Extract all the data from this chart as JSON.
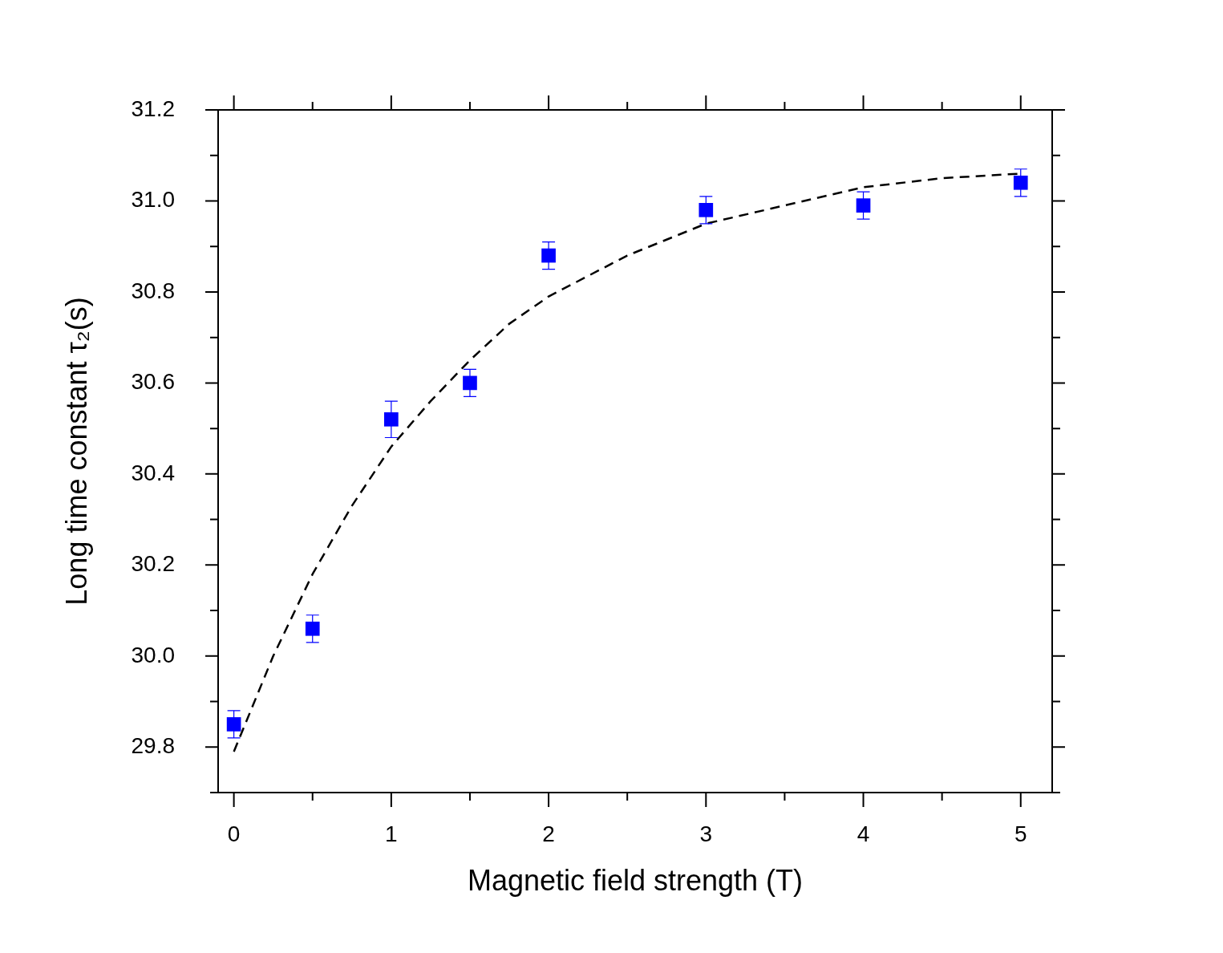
{
  "chart_data": {
    "type": "scatter",
    "xlabel": "Magnetic field strength (T)",
    "ylabel": "Long time constant τ₂(s)",
    "xlim": [
      -0.1,
      5.2
    ],
    "ylim": [
      29.7,
      31.2
    ],
    "xticks": [
      0,
      {
        "value": 0.5,
        "label": null
      },
      1,
      {
        "value": 1.5,
        "label": null
      },
      2,
      {
        "value": 2.5,
        "label": null
      },
      3,
      {
        "value": 3.5,
        "label": null
      },
      4,
      {
        "value": 4.5,
        "label": null
      },
      5
    ],
    "yticks": [
      {
        "value": 29.7,
        "label": null
      },
      29.8,
      {
        "value": 29.9,
        "label": null
      },
      "30.0",
      {
        "value": 30.1,
        "label": null
      },
      30.2,
      {
        "value": 30.3,
        "label": null
      },
      30.4,
      {
        "value": 30.5,
        "label": null
      },
      30.6,
      {
        "value": 30.7,
        "label": null
      },
      30.8,
      {
        "value": 30.9,
        "label": null
      },
      "31.0",
      {
        "value": 31.1,
        "label": null
      },
      31.2
    ],
    "marker": "square",
    "series": [
      {
        "type": "scatter",
        "color": "#0000ff",
        "x": [
          0,
          0.5,
          1,
          1.5,
          2,
          3,
          4,
          5
        ],
        "values": [
          29.85,
          30.06,
          30.52,
          30.6,
          30.88,
          30.98,
          30.99,
          31.04
        ],
        "errors": [
          0.03,
          0.03,
          [
            30.48,
            30.56
          ],
          0.03,
          0.03,
          0.03,
          0.03,
          0.03
        ]
      },
      {
        "type": "line",
        "color": "#000000",
        "marker": "none",
        "line_style": "dashed",
        "x": [
          0,
          0.25,
          0.5,
          0.75,
          1,
          1.25,
          1.5,
          1.75,
          2,
          2.5,
          3,
          3.5,
          4,
          4.5,
          5
        ],
        "values": [
          29.79,
          30.0,
          30.18,
          30.33,
          30.46,
          30.56,
          30.65,
          30.73,
          30.79,
          30.88,
          30.95,
          30.99,
          31.03,
          31.05,
          31.06
        ]
      }
    ]
  }
}
